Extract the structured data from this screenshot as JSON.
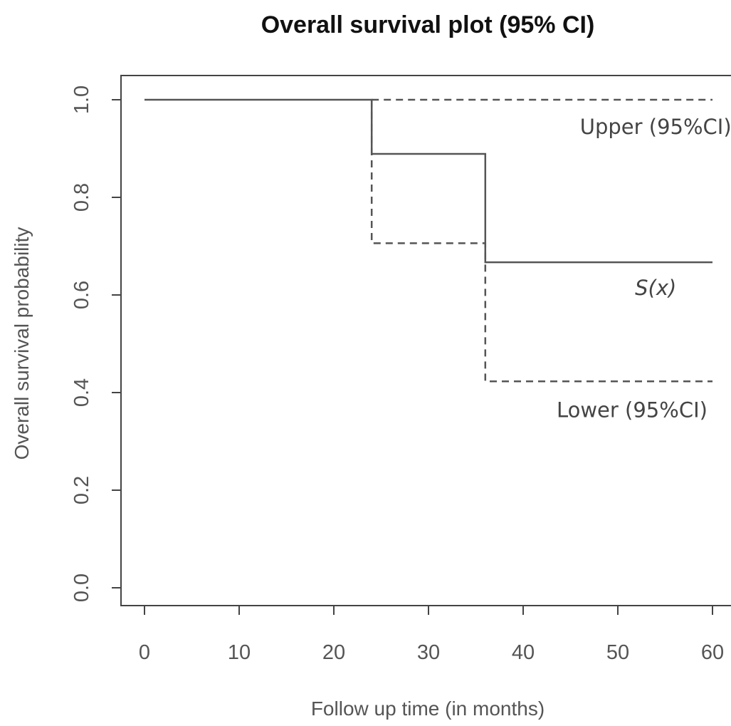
{
  "chart_data": {
    "type": "line",
    "title": "Overall survival plot (95% CI)",
    "xlabel": "Follow up time (in months)",
    "ylabel": "Overall survival probability",
    "xlim": [
      0,
      60
    ],
    "ylim": [
      0,
      1
    ],
    "x_ticks": [
      "0",
      "10",
      "20",
      "30",
      "40",
      "50",
      "60"
    ],
    "y_ticks": [
      "0.0",
      "0.2",
      "0.4",
      "0.6",
      "0.8",
      "1.0"
    ],
    "grid": false,
    "series": [
      {
        "name": "S(x)",
        "style": "solid",
        "step": true,
        "x": [
          0,
          24,
          24,
          36,
          36,
          60
        ],
        "y": [
          1.0,
          1.0,
          0.889,
          0.889,
          0.667,
          0.667
        ]
      },
      {
        "name": "Upper (95%CI)",
        "style": "dashed",
        "step": true,
        "x": [
          24,
          60
        ],
        "y": [
          1.0,
          1.0
        ]
      },
      {
        "name": "Lower (95%CI)",
        "style": "dashed",
        "step": true,
        "x": [
          24,
          24,
          36,
          36,
          60
        ],
        "y": [
          1.0,
          0.706,
          0.706,
          0.423,
          0.423
        ]
      }
    ],
    "annotations": [
      {
        "text": "Upper (95%CI)",
        "x": 54,
        "y": 0.93,
        "italic": false
      },
      {
        "text": "S(x)",
        "x": 54,
        "y": 0.6,
        "italic": true
      },
      {
        "text": "Lower (95%CI)",
        "x": 51.5,
        "y": 0.35,
        "italic": false
      }
    ],
    "colors": {
      "line": "#555555",
      "axis": "#444444",
      "text": "#555555",
      "title": "#111111"
    }
  }
}
